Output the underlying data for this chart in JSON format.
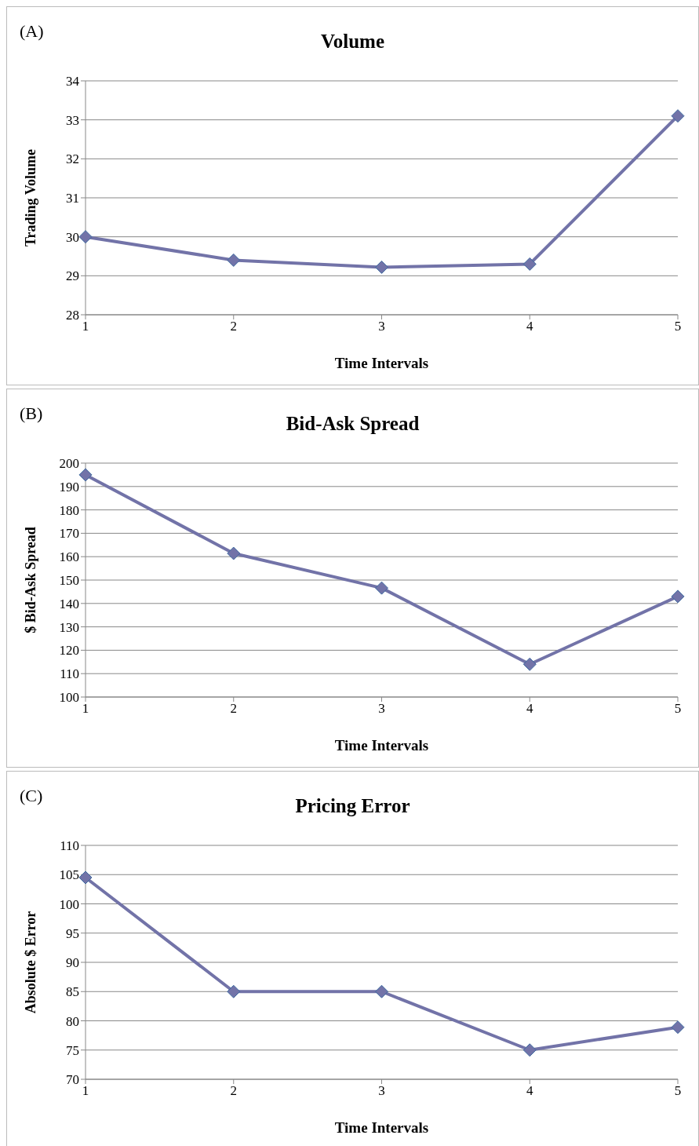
{
  "chart_data": [
    {
      "type": "line",
      "title": "Volume",
      "xlabel": "Time Intervals",
      "ylabel": "Trading Volume",
      "annotations": [
        "(A)"
      ],
      "categories": [
        "1",
        "2",
        "3",
        "4",
        "5"
      ],
      "series": [
        {
          "color": "#7273a8",
          "values": [
            30.0,
            29.4,
            29.22,
            29.3,
            33.1
          ]
        }
      ],
      "ylim": [
        28,
        34
      ],
      "yticks": [
        28,
        29,
        30,
        31,
        32,
        33,
        34
      ],
      "grid": "y",
      "legend": false,
      "marker": "diamond",
      "line_style": "solid"
    },
    {
      "type": "line",
      "title": "Bid-Ask Spread",
      "xlabel": "Time Intervals",
      "ylabel": "$ Bid-Ask Spread",
      "annotations": [
        "(B)"
      ],
      "categories": [
        "1",
        "2",
        "3",
        "4",
        "5"
      ],
      "series": [
        {
          "color": "#7273a8",
          "values": [
            195,
            161.4,
            146.6,
            114,
            143
          ]
        }
      ],
      "ylim": [
        100,
        200
      ],
      "yticks": [
        100,
        110,
        120,
        130,
        140,
        150,
        160,
        170,
        180,
        190,
        200
      ],
      "grid": "y",
      "legend": false,
      "marker": "diamond",
      "line_style": "solid"
    },
    {
      "type": "line",
      "title": "Pricing Error",
      "xlabel": "Time Intervals",
      "ylabel": "Absolute $ Error",
      "annotations": [
        "(C)"
      ],
      "categories": [
        "1",
        "2",
        "3",
        "4",
        "5"
      ],
      "series": [
        {
          "color": "#7273a8",
          "values": [
            104.5,
            85,
            85,
            75,
            78.9
          ]
        }
      ],
      "ylim": [
        70,
        110
      ],
      "yticks": [
        70,
        75,
        80,
        85,
        90,
        95,
        100,
        105,
        110
      ],
      "grid": "y",
      "legend": false,
      "marker": "diamond",
      "line_style": "solid"
    }
  ]
}
